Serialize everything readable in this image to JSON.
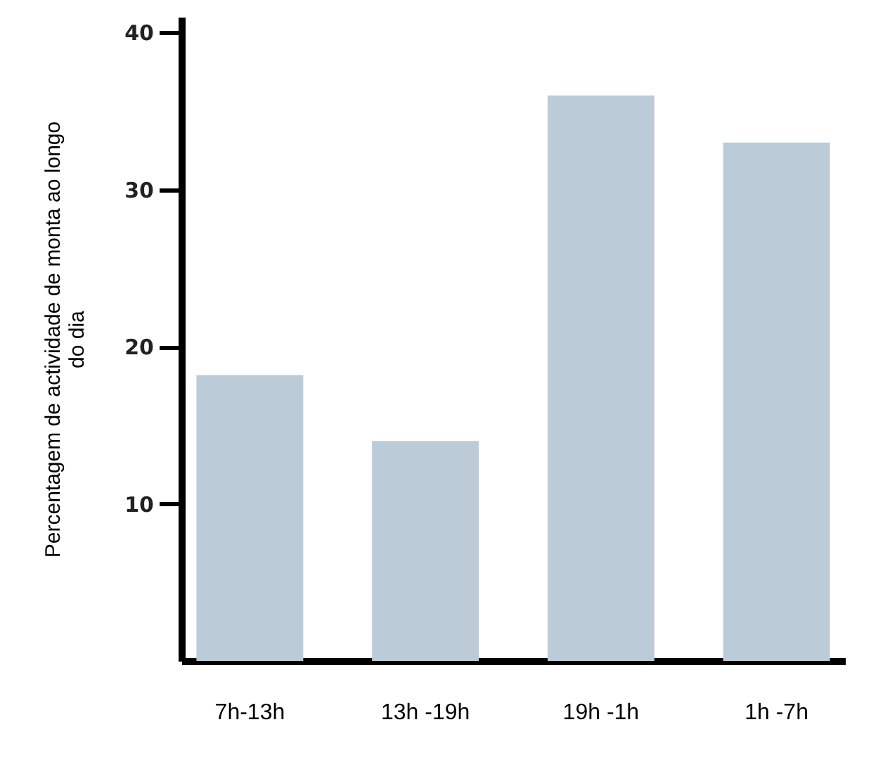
{
  "chart_data": {
    "type": "bar",
    "ylabel": "Percentagem de actividade de monta ao longo do dia",
    "categories": [
      "7h-13h",
      "13h -19h",
      "19h -1h",
      "1h -7h"
    ],
    "values": [
      18.2,
      14,
      36,
      33
    ],
    "color": "#bccbd8",
    "ylim": [
      0,
      41
    ],
    "yticks": [
      10,
      20,
      30,
      40
    ],
    "grid": false
  }
}
